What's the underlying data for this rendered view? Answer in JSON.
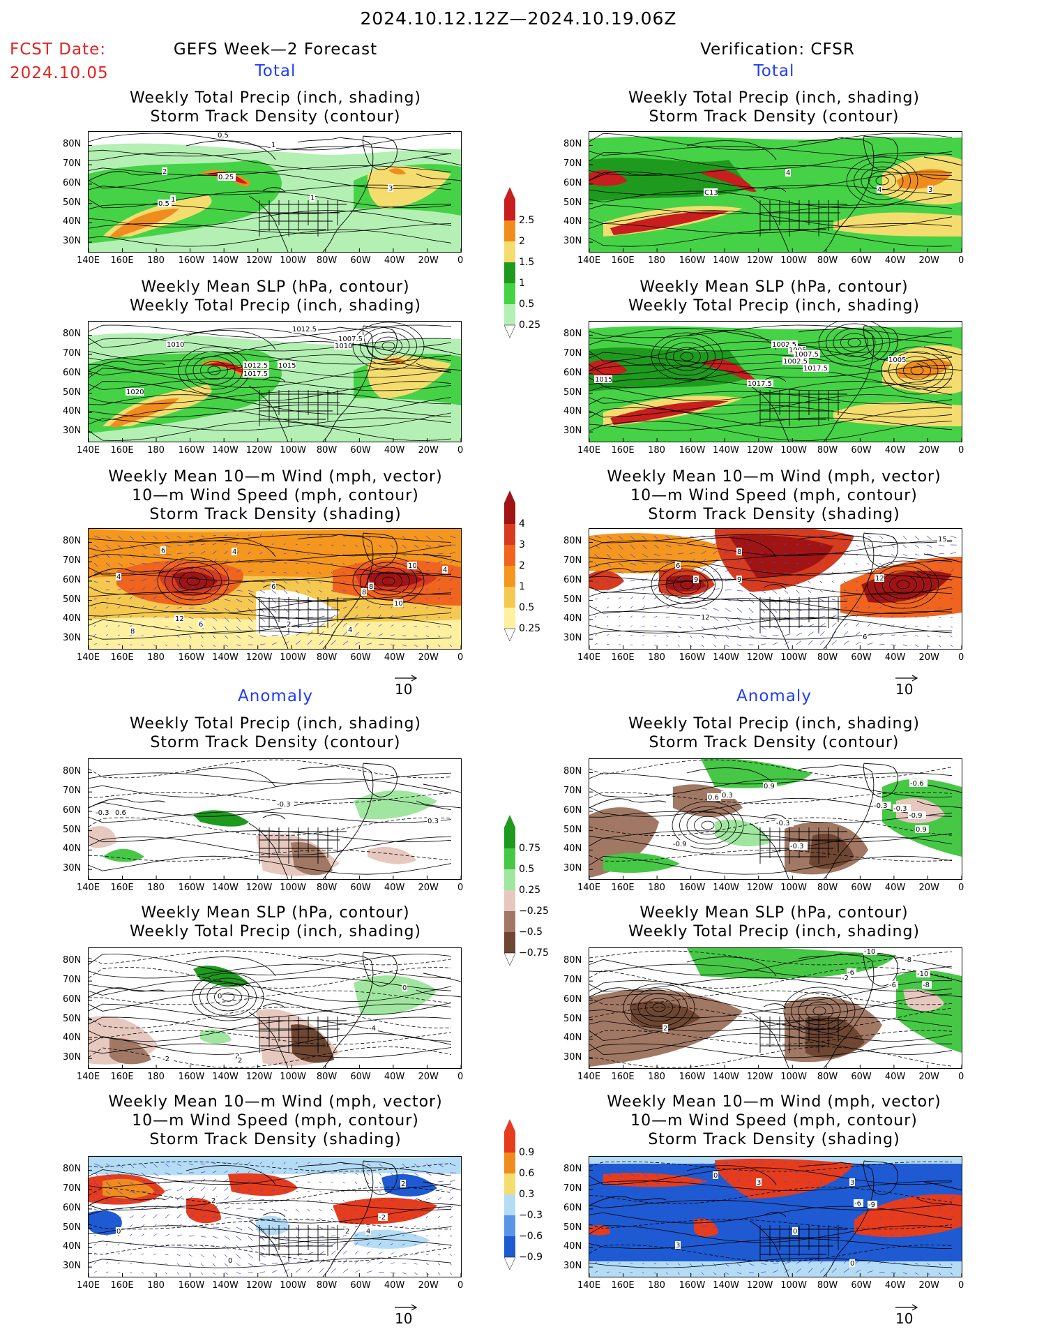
{
  "header": {
    "period": "2024.10.12.12Z—2024.10.19.06Z",
    "fcst_label": "FCST Date:",
    "fcst_date": "2024.10.05",
    "left_title": "GEFS Week—2 Forecast",
    "right_title": "Verification: CFSR"
  },
  "sections": {
    "total": "Total",
    "anomaly": "Anomaly"
  },
  "panel_titles": {
    "precip": [
      "Weekly Total Precip (inch, shading)",
      "Storm Track Density (contour)"
    ],
    "slp": [
      "Weekly Mean SLP (hPa, contour)",
      "Weekly Total Precip (inch, shading)"
    ],
    "wind": [
      "Weekly Mean 10—m Wind (mph, vector)",
      "10—m Wind Speed (mph, contour)",
      "Storm Track Density (shading)"
    ]
  },
  "axes": {
    "lat_labels": [
      "80N",
      "70N",
      "60N",
      "50N",
      "40N",
      "30N"
    ],
    "lon_labels": [
      "140E",
      "160E",
      "180",
      "160W",
      "140W",
      "120W",
      "100W",
      "80W",
      "60W",
      "40W",
      "20W",
      "0"
    ]
  },
  "vector_ref": "10",
  "colorbars": {
    "total_precip": {
      "labels": [
        "2.5",
        "2",
        "1.5",
        "1",
        "0.5",
        "0.25"
      ],
      "colors": [
        "#c81e1e",
        "#f08c1e",
        "#f5dc6e",
        "#1e9b1e",
        "#46d246",
        "#b4f0b4"
      ]
    },
    "total_std": {
      "labels": [
        "4",
        "3",
        "2",
        "1",
        "0.5",
        "0.25"
      ],
      "colors": [
        "#a01414",
        "#d73c1e",
        "#f0641e",
        "#f5961e",
        "#f5c850",
        "#fff0a0"
      ]
    },
    "anom_precip": {
      "labels": [
        "0.75",
        "0.5",
        "0.25",
        "−0.25",
        "−0.5",
        "−0.75"
      ],
      "colors": [
        "#1e9b1e",
        "#46c846",
        "#a0e6a0",
        "#e6c8be",
        "#a07864",
        "#6e4632"
      ]
    },
    "anom_std": {
      "labels": [
        "0.9",
        "0.6",
        "0.3",
        "−0.3",
        "−0.6",
        "−0.9"
      ],
      "colors": [
        "#e63c1e",
        "#f08c1e",
        "#f5dc6e",
        "#b4dcf5",
        "#5a96e6",
        "#1e5ad2"
      ]
    }
  },
  "contour_labels": {
    "p1L": [
      "0.5",
      "1",
      "2",
      "0.25",
      "0.5",
      "1",
      "1",
      "3"
    ],
    "p1R": [
      "4",
      "C13",
      "4",
      "3"
    ],
    "p2L": [
      "1012.5",
      "1010",
      "1007.5",
      "1010",
      "1012.5",
      "1015",
      "1017.5",
      "1020"
    ],
    "p2R": [
      "1002.5",
      "1005",
      "1007.5",
      "1002.5",
      "1017.5",
      "1005",
      "1017.5",
      "1015"
    ],
    "p3L": [
      "6",
      "4",
      "4",
      "6",
      "10",
      "8",
      "8",
      "10",
      "12",
      "6",
      "8",
      "2",
      "4",
      "4"
    ],
    "p3R": [
      "8",
      "9",
      "9",
      "12",
      "15",
      "6",
      "12",
      "6"
    ],
    "p4L": [
      "-0.3",
      "0.6",
      "-0.3",
      "0.3"
    ],
    "p4R": [
      "0.3",
      "0.6",
      "0.9",
      "-0.3",
      "-0.9",
      "-0.3",
      "-0.3",
      "-0.6",
      "0.9",
      "-0.9",
      "-0.3"
    ],
    "p5L": [
      "0",
      "2",
      "2",
      "-2",
      "-4",
      "0"
    ],
    "p5R": [
      "-10",
      "-8",
      "-6",
      "-2",
      "2",
      "-6",
      "-10",
      "-8"
    ],
    "p6L": [
      "0",
      "2",
      "2",
      "-2",
      "4",
      "2",
      "0"
    ],
    "p6R": [
      "0",
      "3",
      "3",
      "-9",
      "-6",
      "0",
      "3",
      "0"
    ]
  }
}
